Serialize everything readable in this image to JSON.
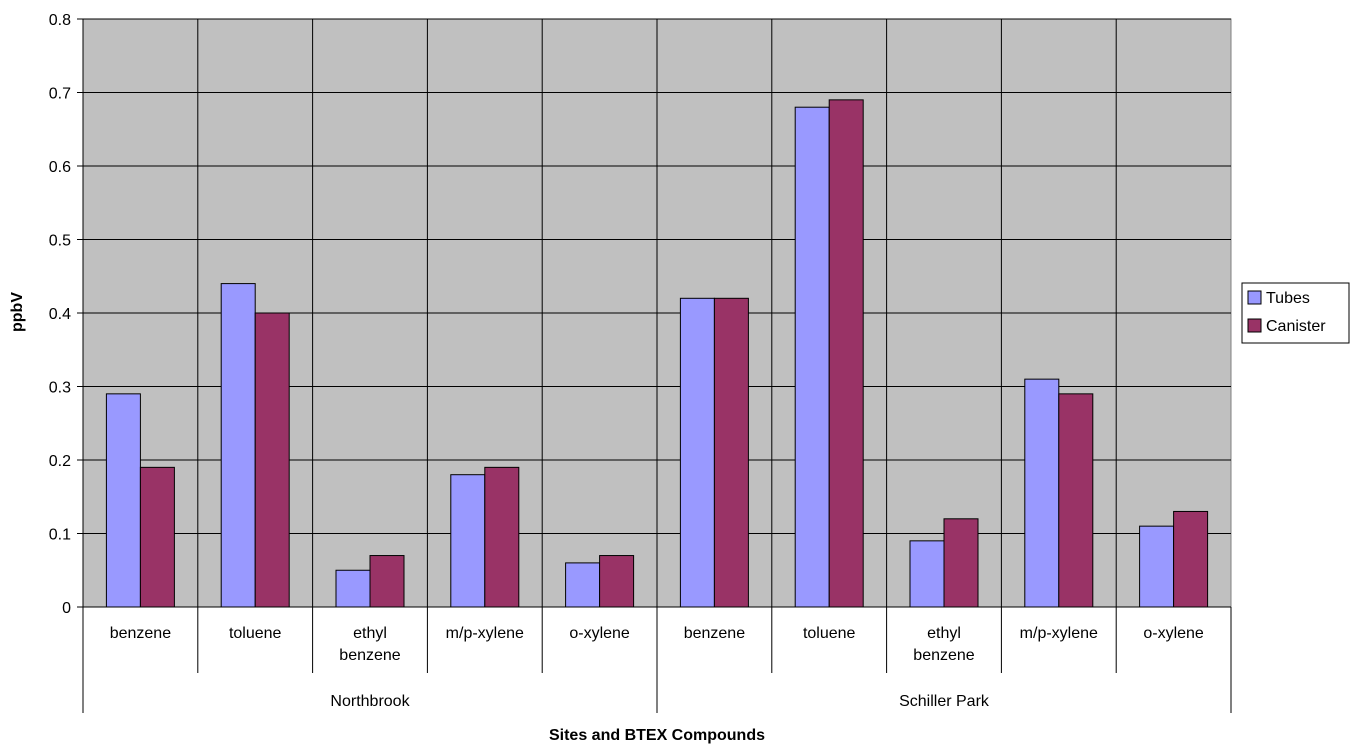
{
  "chart_data": {
    "type": "bar",
    "title": "",
    "xlabel": "Sites and BTEX Compounds",
    "ylabel": "ppbV",
    "ylim": [
      0,
      0.8
    ],
    "yticks": [
      "0",
      "0.1",
      "0.2",
      "0.3",
      "0.4",
      "0.5",
      "0.6",
      "0.7",
      "0.8"
    ],
    "grid": true,
    "legend_position": "right",
    "categories": [
      {
        "group": "Northbrook",
        "lines": [
          "benzene"
        ]
      },
      {
        "group": "Northbrook",
        "lines": [
          "toluene"
        ]
      },
      {
        "group": "Northbrook",
        "lines": [
          "ethyl",
          "benzene"
        ]
      },
      {
        "group": "Northbrook",
        "lines": [
          "m/p-xylene"
        ]
      },
      {
        "group": "Northbrook",
        "lines": [
          "o-xylene"
        ]
      },
      {
        "group": "Schiller Park",
        "lines": [
          "benzene"
        ]
      },
      {
        "group": "Schiller Park",
        "lines": [
          "toluene"
        ]
      },
      {
        "group": "Schiller Park",
        "lines": [
          "ethyl",
          "benzene"
        ]
      },
      {
        "group": "Schiller Park",
        "lines": [
          "m/p-xylene"
        ]
      },
      {
        "group": "Schiller Park",
        "lines": [
          "o-xylene"
        ]
      }
    ],
    "groups": [
      "Northbrook",
      "Schiller Park"
    ],
    "series": [
      {
        "name": "Tubes",
        "color": "#9999ff",
        "values": [
          0.29,
          0.44,
          0.05,
          0.18,
          0.06,
          0.42,
          0.68,
          0.09,
          0.31,
          0.11
        ]
      },
      {
        "name": "Canister",
        "color": "#993366",
        "values": [
          0.19,
          0.4,
          0.07,
          0.19,
          0.07,
          0.42,
          0.69,
          0.12,
          0.29,
          0.13
        ]
      }
    ],
    "plot_background": "#c0c0c0"
  }
}
